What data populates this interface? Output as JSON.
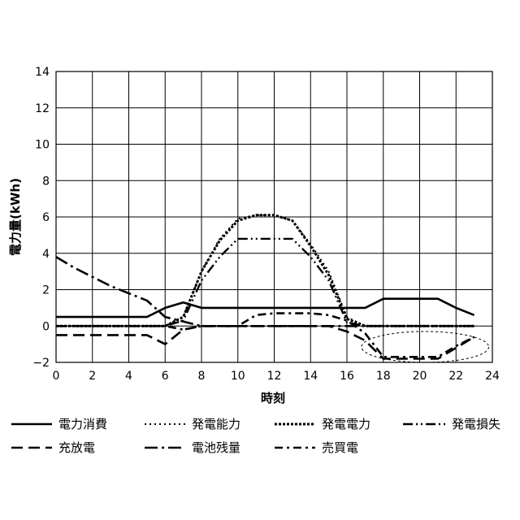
{
  "chart_data": {
    "type": "line",
    "xlabel": "時刻",
    "ylabel": "電力量(kWh)",
    "xlim": [
      0,
      24
    ],
    "ylim": [
      -2,
      14
    ],
    "x_ticks": [
      0,
      2,
      4,
      6,
      8,
      10,
      12,
      14,
      16,
      18,
      20,
      22,
      24
    ],
    "y_ticks": [
      -2,
      0,
      2,
      4,
      6,
      8,
      10,
      12,
      14
    ],
    "grid": true,
    "legend_position": "bottom",
    "series": [
      {
        "name": "電力消費",
        "style": "solid",
        "x": [
          0,
          5,
          6,
          7,
          8,
          9,
          10,
          11,
          12,
          13,
          14,
          15,
          16,
          17,
          18,
          19,
          20,
          21,
          22,
          23
        ],
        "y": [
          0.5,
          0.5,
          1.0,
          1.3,
          1.0,
          1.0,
          1.0,
          1.0,
          1.0,
          1.0,
          1.0,
          1.0,
          1.0,
          1.0,
          1.5,
          1.5,
          1.5,
          1.5,
          1.0,
          0.6
        ]
      },
      {
        "name": "発電能力",
        "style": "dotted",
        "x": [
          0,
          6,
          7,
          8,
          9,
          10,
          11,
          12,
          13,
          14,
          15,
          16,
          17,
          18,
          23
        ],
        "y": [
          0,
          0,
          0.5,
          3.0,
          4.8,
          5.9,
          6.1,
          6.1,
          5.8,
          4.5,
          3.0,
          0.5,
          0,
          0,
          0
        ]
      },
      {
        "name": "発電電力",
        "style": "dense-dotted",
        "x": [
          0,
          6,
          7,
          8,
          9,
          10,
          11,
          12,
          13,
          14,
          15,
          16,
          17,
          18,
          23
        ],
        "y": [
          0,
          0,
          0.5,
          3.0,
          4.7,
          5.8,
          6.1,
          6.1,
          5.8,
          4.4,
          2.8,
          0.4,
          0,
          0,
          0
        ]
      },
      {
        "name": "発電損失",
        "style": "dash-dot-dot",
        "x": [
          0,
          6,
          7,
          8,
          9,
          10,
          11,
          12,
          13,
          14,
          15,
          16,
          17,
          23
        ],
        "y": [
          0,
          0,
          0.3,
          2.5,
          3.8,
          4.8,
          4.8,
          4.8,
          4.8,
          3.8,
          2.5,
          0.2,
          0,
          0
        ]
      },
      {
        "name": "充放電",
        "style": "long-dash",
        "x": [
          0,
          5,
          6,
          7,
          8,
          10,
          11,
          12,
          13,
          14,
          15,
          16,
          17,
          18,
          21,
          22,
          23
        ],
        "y": [
          -0.5,
          -0.5,
          -1.0,
          -0.2,
          0,
          0,
          0,
          0,
          0,
          0,
          0,
          -0.3,
          -0.8,
          -1.8,
          -1.8,
          -1.2,
          -0.6
        ]
      },
      {
        "name": "電池残量",
        "style": "dash-dot",
        "x": [
          0,
          1,
          2,
          3,
          4,
          5,
          6,
          8,
          10,
          11,
          12,
          13,
          14,
          15,
          16,
          17,
          23
        ],
        "y": [
          3.8,
          3.2,
          2.7,
          2.2,
          1.8,
          1.4,
          0.5,
          0,
          0,
          0,
          0,
          0,
          0,
          0,
          0,
          0,
          0
        ]
      },
      {
        "name": "売買電",
        "style": "dash-dot-long",
        "x": [
          0,
          6,
          7,
          8,
          10,
          11,
          12,
          13,
          14,
          15,
          16,
          17,
          18,
          21,
          22,
          23
        ],
        "y": [
          0,
          0,
          -0.2,
          0,
          0,
          0.6,
          0.7,
          0.7,
          0.7,
          0.6,
          0.3,
          -0.4,
          -1.7,
          -1.7,
          -1.1,
          -0.6
        ]
      }
    ],
    "annotations": [
      {
        "type": "ellipse",
        "style": "dotted",
        "x_range": [
          16.8,
          23.8
        ],
        "y_range": [
          -2.0,
          -0.3
        ]
      }
    ]
  }
}
